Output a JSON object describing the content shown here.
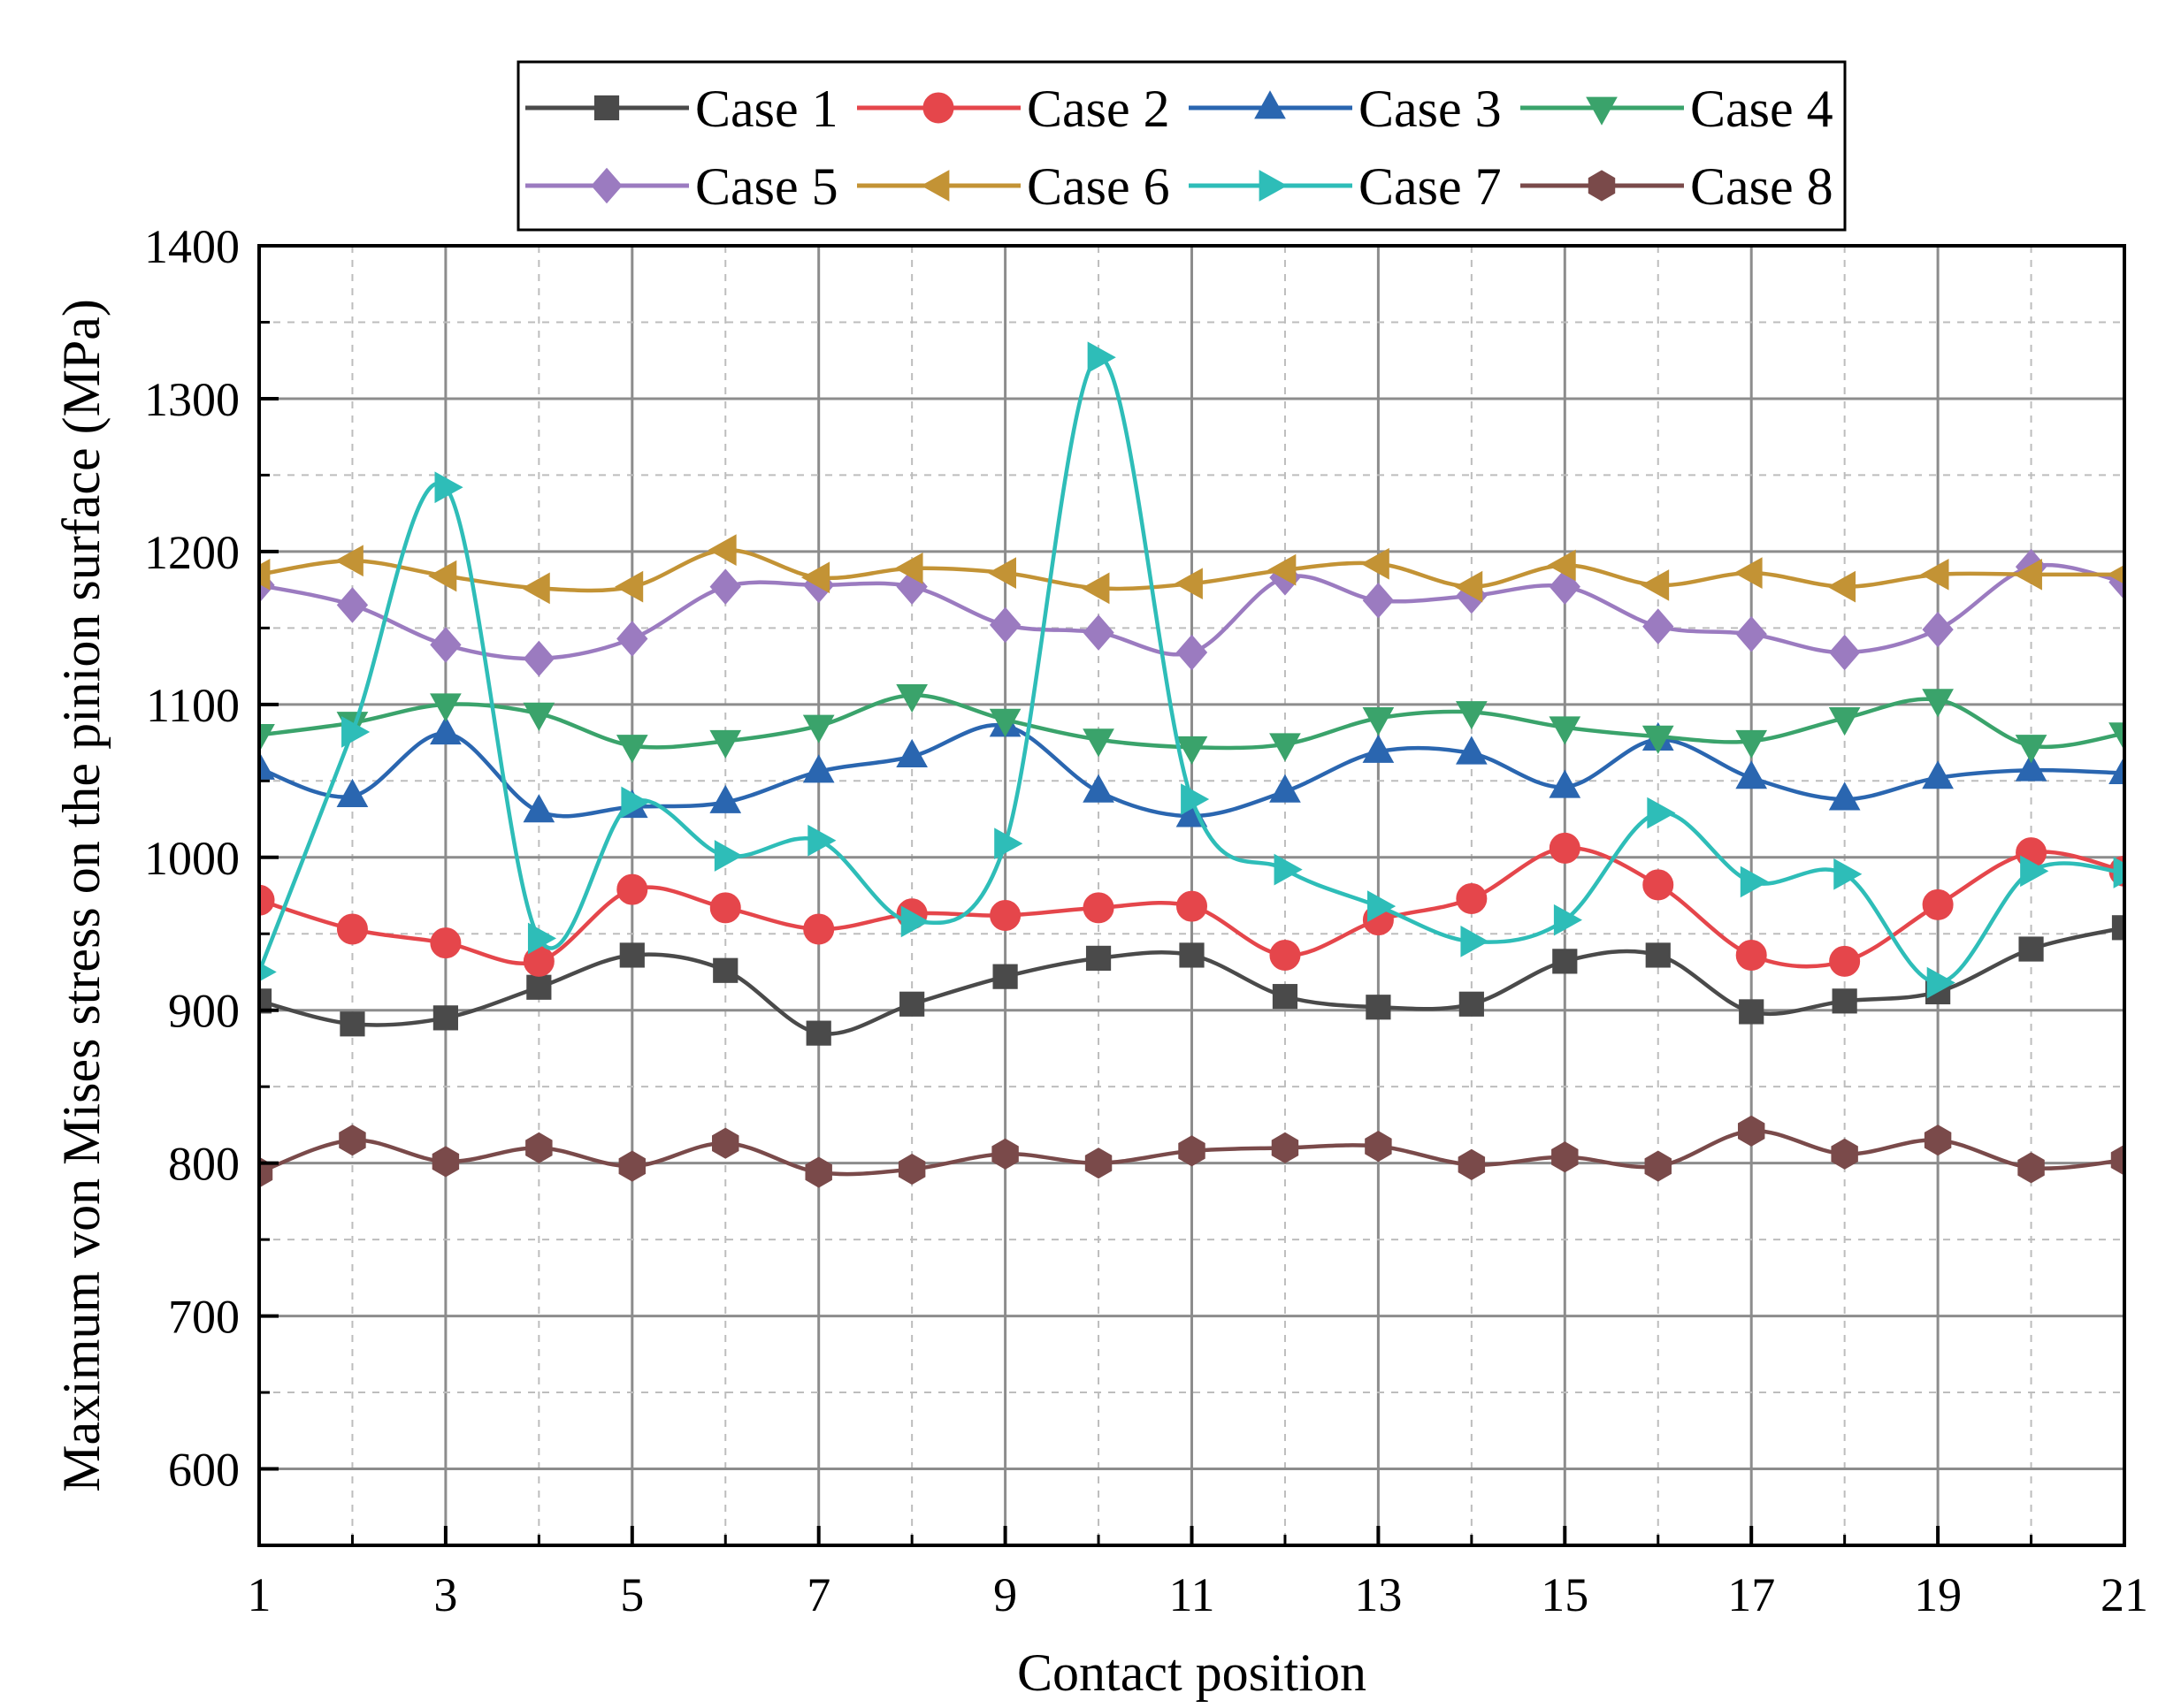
{
  "chart_data": {
    "type": "line",
    "title": "",
    "xlabel": "Contact position",
    "ylabel": "Maximum von Mises stress on the pinion surface (MPa)",
    "xlim": [
      1,
      21
    ],
    "ylim": [
      550,
      1400
    ],
    "x_ticks": [
      "1",
      "3",
      "5",
      "7",
      "9",
      "11",
      "13",
      "15",
      "17",
      "19",
      "21"
    ],
    "y_ticks": [
      "600",
      "700",
      "800",
      "900",
      "1000",
      "1100",
      "1200",
      "1300",
      "1400"
    ],
    "grid": true,
    "legend": "top",
    "x": [
      1,
      2,
      3,
      4,
      5,
      6,
      7,
      8,
      9,
      10,
      11,
      12,
      13,
      14,
      15,
      16,
      17,
      18,
      19,
      20,
      21
    ],
    "series": [
      {
        "name": "Case 1",
        "color": "#4a4a4a",
        "marker": "square",
        "values": [
          906,
          891,
          895,
          915,
          936,
          926,
          885,
          904,
          922,
          934,
          936,
          909,
          902,
          904,
          932,
          936,
          899,
          906,
          912,
          940,
          954
        ]
      },
      {
        "name": "Case 2",
        "color": "#e5464b",
        "marker": "circle",
        "values": [
          972,
          953,
          944,
          932,
          979,
          967,
          953,
          963,
          962,
          967,
          968,
          936,
          959,
          973,
          1006,
          982,
          936,
          932,
          969,
          1003,
          991
        ]
      },
      {
        "name": "Case 3",
        "color": "#2a66b0",
        "marker": "triangle-up",
        "values": [
          1058,
          1040,
          1081,
          1030,
          1033,
          1036,
          1056,
          1066,
          1086,
          1043,
          1027,
          1043,
          1069,
          1068,
          1046,
          1077,
          1052,
          1038,
          1052,
          1057,
          1055
        ]
      },
      {
        "name": "Case 4",
        "color": "#3aa36b",
        "marker": "triangle-down",
        "values": [
          1080,
          1088,
          1100,
          1094,
          1073,
          1076,
          1086,
          1106,
          1090,
          1077,
          1072,
          1074,
          1091,
          1095,
          1085,
          1079,
          1076,
          1091,
          1103,
          1073,
          1081
        ]
      },
      {
        "name": "Case 5",
        "color": "#9b7bc0",
        "marker": "diamond",
        "values": [
          1178,
          1165,
          1139,
          1130,
          1143,
          1177,
          1178,
          1177,
          1152,
          1147,
          1134,
          1183,
          1168,
          1171,
          1177,
          1151,
          1146,
          1134,
          1149,
          1190,
          1180
        ]
      },
      {
        "name": "Case 6",
        "color": "#c39335",
        "marker": "triangle-left",
        "values": [
          1185,
          1194,
          1184,
          1176,
          1177,
          1201,
          1183,
          1189,
          1186,
          1176,
          1179,
          1188,
          1192,
          1177,
          1191,
          1178,
          1186,
          1177,
          1185,
          1185,
          1185
        ]
      },
      {
        "name": "Case 7",
        "color": "#2ebdb8",
        "marker": "triangle-right",
        "values": [
          925,
          1082,
          1242,
          947,
          1036,
          1001,
          1011,
          958,
          1009,
          1327,
          1038,
          992,
          968,
          945,
          959,
          1029,
          984,
          989,
          918,
          991,
          990
        ]
      },
      {
        "name": "Case 8",
        "color": "#7a4a4a",
        "marker": "hexagon",
        "values": [
          794,
          815,
          801,
          810,
          798,
          813,
          794,
          796,
          806,
          800,
          808,
          810,
          811,
          799,
          804,
          798,
          821,
          806,
          815,
          797,
          802
        ]
      }
    ]
  }
}
